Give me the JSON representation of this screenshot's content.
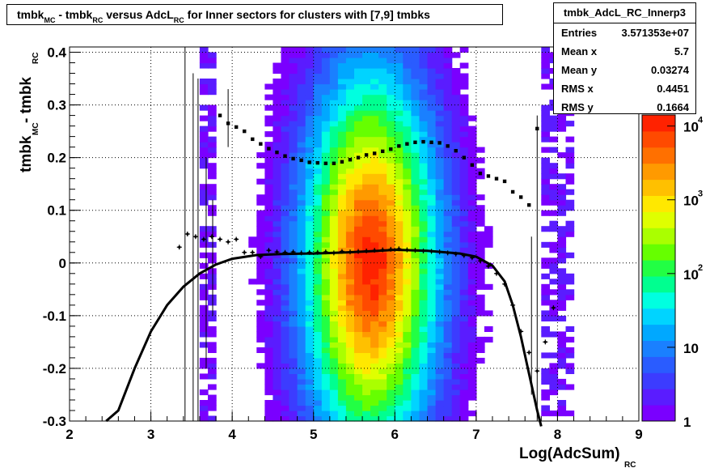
{
  "title": {
    "part1": "tmbk",
    "sub1": "MC",
    "part2": " - tmbk",
    "sub2": "RC",
    "part3": " versus AdcL",
    "sub3": "RC",
    "part4": " for Inner sectors for clusters with [7,9] tmbks"
  },
  "stats": {
    "name": "tmbk_AdcL_RC_Innerp3",
    "rows": [
      {
        "label": "Entries",
        "value": "3.571353e+07"
      },
      {
        "label": "Mean x",
        "value": "5.7"
      },
      {
        "label": "Mean y",
        "value": "0.03274"
      },
      {
        "label": "RMS x",
        "value": "0.4451"
      },
      {
        "label": "RMS y",
        "value": "0.1664"
      }
    ]
  },
  "chart_data": {
    "type": "heatmap",
    "xlabel": "Log(AdcSum)",
    "xlabel_sub": "RC",
    "ylabel": "tmbk",
    "ylabel_sub1": "MC",
    "ylabel_mid": " - tmbk",
    "ylabel_sub2": "RC",
    "xlim": [
      2,
      9
    ],
    "ylim": [
      -0.3,
      0.41
    ],
    "x_ticks": [
      "2",
      "3",
      "4",
      "5",
      "6",
      "7",
      "8",
      "9"
    ],
    "y_ticks": [
      "-0.3",
      "-0.2",
      "-0.1",
      "0",
      "0.1",
      "0.2",
      "0.3",
      "0.4"
    ],
    "z_scale": "log",
    "z_ticks": [
      "1",
      "10",
      "10^2",
      "10^3",
      "10^4"
    ],
    "grid": true,
    "palette": [
      "#7a00ff",
      "#5a1cff",
      "#3c3cff",
      "#2a5cff",
      "#1a80ff",
      "#00a8ff",
      "#00d4ff",
      "#00ffe0",
      "#00ff90",
      "#22ff44",
      "#66ff00",
      "#aaff00",
      "#dfff00",
      "#ffe800",
      "#ffc000",
      "#ff9a00",
      "#ff7000",
      "#ff4a00",
      "#ff2200"
    ],
    "mean_series": {
      "name": "mean",
      "x": [
        3.35,
        3.45,
        3.55,
        3.65,
        3.75,
        3.85,
        3.95,
        4.05,
        4.15,
        4.25,
        4.35,
        4.45,
        4.55,
        4.65,
        4.75,
        4.85,
        4.95,
        5.05,
        5.15,
        5.25,
        5.35,
        5.45,
        5.55,
        5.65,
        5.75,
        5.85,
        5.95,
        6.05,
        6.15,
        6.25,
        6.35,
        6.45,
        6.55,
        6.65,
        6.75,
        6.85,
        6.95,
        7.05,
        7.15,
        7.25,
        7.35,
        7.45,
        7.55,
        7.65,
        7.75,
        7.85,
        7.95
      ],
      "y": [
        0.03,
        0.055,
        0.05,
        0.045,
        0.05,
        0.045,
        0.04,
        0.045,
        0.02,
        0.02,
        0.012,
        0.024,
        0.021,
        0.02,
        0.021,
        0.019,
        0.02,
        0.02,
        0.021,
        0.019,
        0.022,
        0.021,
        0.022,
        0.023,
        0.024,
        0.025,
        0.026,
        0.027,
        0.025,
        0.024,
        0.023,
        0.022,
        0.021,
        0.019,
        0.017,
        0.014,
        0.01,
        0.004,
        -0.006,
        -0.02,
        -0.04,
        -0.08,
        -0.13,
        -0.17,
        -0.205,
        -0.15,
        -0.085
      ]
    },
    "rms_series": {
      "name": "rms",
      "x": [
        3.85,
        3.95,
        4.05,
        4.15,
        4.25,
        4.35,
        4.45,
        4.55,
        4.65,
        4.75,
        4.85,
        4.95,
        5.05,
        5.15,
        5.25,
        5.35,
        5.45,
        5.55,
        5.65,
        5.75,
        5.85,
        5.95,
        6.05,
        6.15,
        6.25,
        6.35,
        6.45,
        6.55,
        6.65,
        6.75,
        6.85,
        6.95,
        7.05,
        7.15,
        7.25,
        7.35,
        7.45,
        7.55,
        7.65,
        7.75
      ],
      "y": [
        0.28,
        0.265,
        0.258,
        0.25,
        0.235,
        0.226,
        0.217,
        0.21,
        0.203,
        0.198,
        0.195,
        0.191,
        0.19,
        0.189,
        0.189,
        0.192,
        0.196,
        0.2,
        0.205,
        0.208,
        0.212,
        0.216,
        0.222,
        0.226,
        0.229,
        0.23,
        0.229,
        0.228,
        0.222,
        0.213,
        0.2,
        0.186,
        0.17,
        0.165,
        0.16,
        0.155,
        0.135,
        0.125,
        0.11,
        0.255
      ]
    },
    "fit_curve": {
      "x": [
        2.45,
        2.6,
        2.8,
        3.0,
        3.2,
        3.4,
        3.6,
        3.8,
        4.0,
        4.3,
        4.6,
        5.0,
        5.4,
        5.8,
        6.0,
        6.4,
        6.8,
        7.0,
        7.2,
        7.35,
        7.45,
        7.55,
        7.65,
        7.75,
        7.8
      ],
      "y": [
        -0.3,
        -0.28,
        -0.2,
        -0.13,
        -0.08,
        -0.045,
        -0.02,
        -0.003,
        0.008,
        0.015,
        0.017,
        0.018,
        0.02,
        0.023,
        0.025,
        0.023,
        0.018,
        0.012,
        -0.005,
        -0.035,
        -0.08,
        -0.14,
        -0.21,
        -0.28,
        -0.31
      ]
    }
  }
}
